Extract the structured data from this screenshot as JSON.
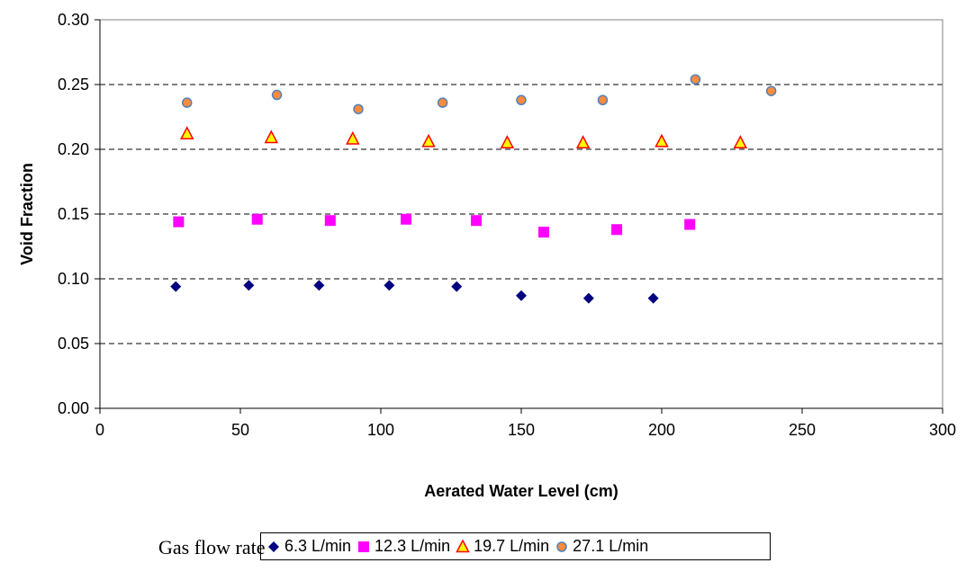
{
  "chart_data": {
    "type": "scatter",
    "xlabel": "Aerated Water Level (cm)",
    "ylabel": "Void Fraction",
    "xlim": [
      0,
      300
    ],
    "ylim": [
      0,
      0.3
    ],
    "xticks": [
      "0",
      "50",
      "100",
      "150",
      "200",
      "250",
      "300"
    ],
    "yticks": [
      "0.00",
      "0.05",
      "0.10",
      "0.15",
      "0.20",
      "0.25",
      "0.30"
    ],
    "grid": "horizontal dashed",
    "legend_placement": "bottom",
    "legend_caption": "Gas flow rate",
    "series": [
      {
        "name": "6.3 L/min",
        "marker": "diamond",
        "color": "#000080",
        "points": [
          [
            27,
            0.094
          ],
          [
            53,
            0.095
          ],
          [
            78,
            0.095
          ],
          [
            103,
            0.095
          ],
          [
            127,
            0.094
          ],
          [
            150,
            0.087
          ],
          [
            174,
            0.085
          ],
          [
            197,
            0.085
          ]
        ]
      },
      {
        "name": "12.3 L/min",
        "marker": "square",
        "color": "#ff00ff",
        "points": [
          [
            28,
            0.144
          ],
          [
            56,
            0.146
          ],
          [
            82,
            0.145
          ],
          [
            109,
            0.146
          ],
          [
            134,
            0.145
          ],
          [
            158,
            0.136
          ],
          [
            184,
            0.138
          ],
          [
            210,
            0.142
          ]
        ]
      },
      {
        "name": "19.7 L/min",
        "marker": "triangle",
        "color": "#ffff00",
        "stroke": "#ff0000",
        "points": [
          [
            31,
            0.212
          ],
          [
            61,
            0.209
          ],
          [
            90,
            0.208
          ],
          [
            117,
            0.206
          ],
          [
            145,
            0.205
          ],
          [
            172,
            0.205
          ],
          [
            200,
            0.206
          ],
          [
            228,
            0.205
          ]
        ]
      },
      {
        "name": "27.1 L/min",
        "marker": "circle",
        "color": "#ff8c3a",
        "stroke": "#4f81bd",
        "points": [
          [
            31,
            0.236
          ],
          [
            63,
            0.242
          ],
          [
            92,
            0.231
          ],
          [
            122,
            0.236
          ],
          [
            150,
            0.238
          ],
          [
            179,
            0.238
          ],
          [
            212,
            0.254
          ],
          [
            239,
            0.245
          ]
        ]
      }
    ]
  }
}
